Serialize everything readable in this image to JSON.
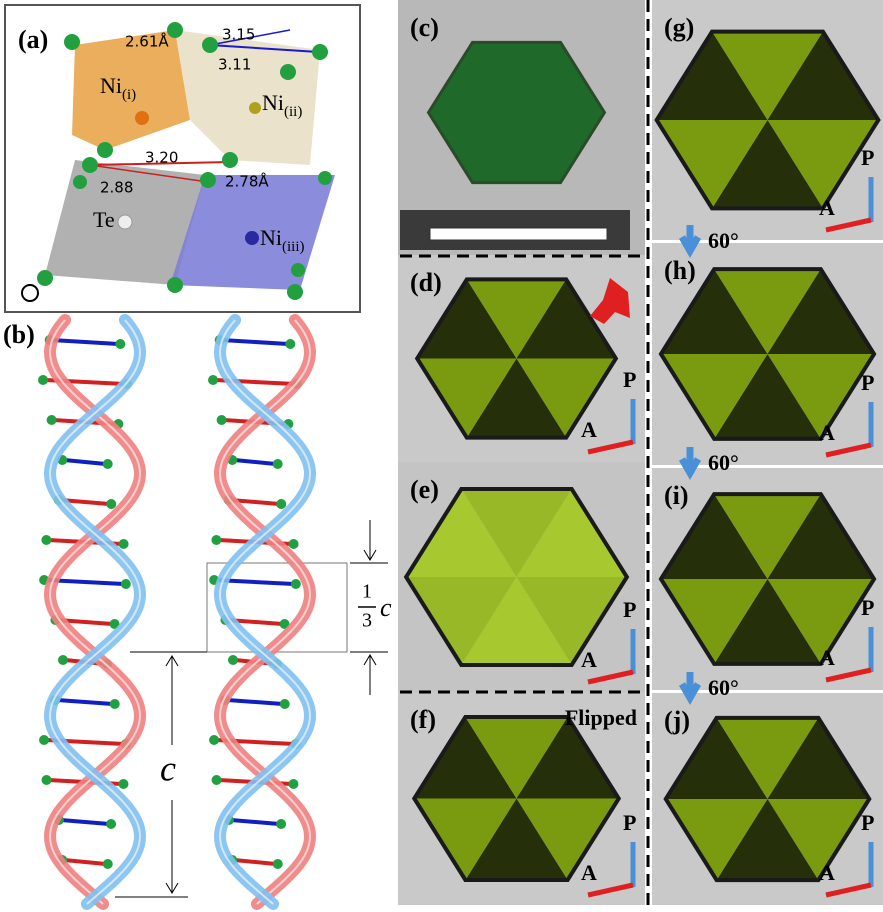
{
  "panel_a": {
    "label": "(a)",
    "distances": [
      "2.61Å",
      "3.15",
      "3.11",
      "3.20",
      "2.88",
      "2.78Å"
    ],
    "atoms": [
      {
        "name": "Ni",
        "sub": "(i)"
      },
      {
        "name": "Ni",
        "sub": "(ii)"
      },
      {
        "name": "Te"
      },
      {
        "name": "Ni",
        "sub": "(iii)"
      }
    ]
  },
  "panel_b": {
    "label": "(b)",
    "fraction": {
      "num": "1",
      "den": "3",
      "var": "c"
    },
    "period": "c"
  },
  "photos": [
    {
      "label": "(c)"
    },
    {
      "label": "(d)",
      "polarizer": "P",
      "analyzer": "A"
    },
    {
      "label": "(e)",
      "polarizer": "P",
      "analyzer": "A"
    },
    {
      "label": "(f)",
      "note": "Flipped",
      "polarizer": "P",
      "analyzer": "A"
    },
    {
      "label": "(g)",
      "polarizer": "P",
      "analyzer": "A"
    },
    {
      "label": "(h)",
      "polarizer": "P",
      "analyzer": "A"
    },
    {
      "label": "(i)",
      "polarizer": "P",
      "analyzer": "A"
    },
    {
      "label": "(j)",
      "polarizer": "P",
      "analyzer": "A"
    }
  ],
  "rotations": [
    "60°",
    "60°",
    "60°"
  ]
}
